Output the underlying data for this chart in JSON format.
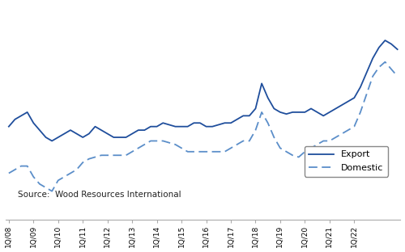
{
  "source_text": "Source:  Wood Resources International",
  "line_color_export": "#1f4e9c",
  "line_color_domestic": "#5b8ec9",
  "x_labels": [
    "1Q/08",
    "1Q/09",
    "1Q/10",
    "1Q/11",
    "1Q/12",
    "1Q/13",
    "1Q/14",
    "1Q/15",
    "1Q/16",
    "1Q/17",
    "1Q/18",
    "1Q/19",
    "1Q/20",
    "1Q/21",
    "1Q/22"
  ],
  "export": [
    72,
    76,
    78,
    80,
    74,
    70,
    66,
    64,
    66,
    68,
    70,
    68,
    66,
    68,
    72,
    70,
    68,
    66,
    66,
    66,
    68,
    70,
    70,
    72,
    72,
    74,
    73,
    72,
    72,
    72,
    74,
    74,
    72,
    72,
    73,
    74,
    74,
    76,
    78,
    78,
    82,
    96,
    88,
    82,
    80,
    79,
    80,
    80,
    80,
    82,
    80,
    78,
    80,
    82,
    84,
    86,
    88,
    94,
    102,
    110,
    116,
    120,
    118,
    115
  ],
  "domestic": [
    46,
    48,
    50,
    50,
    44,
    40,
    38,
    36,
    42,
    44,
    46,
    48,
    52,
    54,
    55,
    56,
    56,
    56,
    56,
    56,
    58,
    60,
    62,
    64,
    64,
    64,
    63,
    62,
    60,
    58,
    58,
    58,
    58,
    58,
    58,
    58,
    60,
    62,
    64,
    64,
    70,
    80,
    74,
    66,
    60,
    58,
    56,
    55,
    58,
    60,
    62,
    64,
    64,
    66,
    68,
    70,
    72,
    80,
    90,
    100,
    105,
    108,
    104,
    100
  ],
  "ylim_min": 20,
  "ylim_max": 140,
  "grid_color": "#cccccc",
  "spine_color": "#aaaaaa",
  "tick_label_fontsize": 6.5,
  "legend_fontsize": 8,
  "source_fontsize": 7.5
}
